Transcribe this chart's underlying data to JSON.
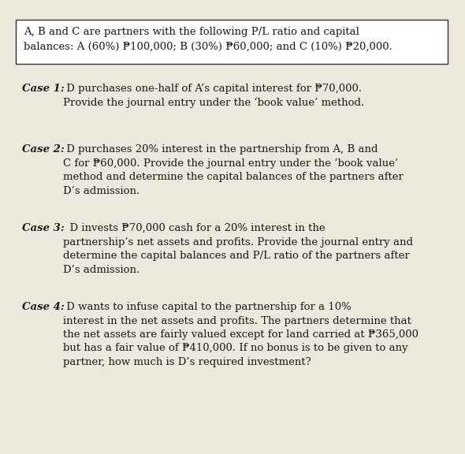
{
  "bg_color": "#ede8dc",
  "box_color": "#ffffff",
  "box_line1": "A, B and C are partners with the following P/L ratio and capital",
  "box_line2": "balances: A (60%) ₱100,000; B (30%) ₱60,000; and C (10%) ₱20,000.",
  "case1_label": "Case 1:",
  "case1_body": " D purchases one-half of A’s capital interest for ₱70,000.\nProvide the journal entry under the ‘book value’ method.",
  "case2_label": "Case 2:",
  "case2_body": " D purchases 20% interest in the partnership from A, B and\nC for ₱60,000. Provide the journal entry under the ‘book value’\nmethod and determine the capital balances of the partners after\nD’s admission.",
  "case3_label": "Case 3:",
  "case3_body": "  D invests ₱70,000 cash for a 20% interest in the\npartnership’s net assets and profits. Provide the journal entry and\ndetermine the capital balances and P/L ratio of the partners after\nD’s admission.",
  "case4_label": "Case 4:",
  "case4_body": " D wants to infuse capital to the partnership for a 10%\ninterest in the net assets and profits. The partners determine that\nthe net assets are fairly valued except for land carried at ₱365,000\nbut has a fair value of ₱410,000. If no bonus is to be given to any\npartner, how much is D’s required investment?",
  "font_size": 9.5,
  "text_color": "#1a1a1a"
}
